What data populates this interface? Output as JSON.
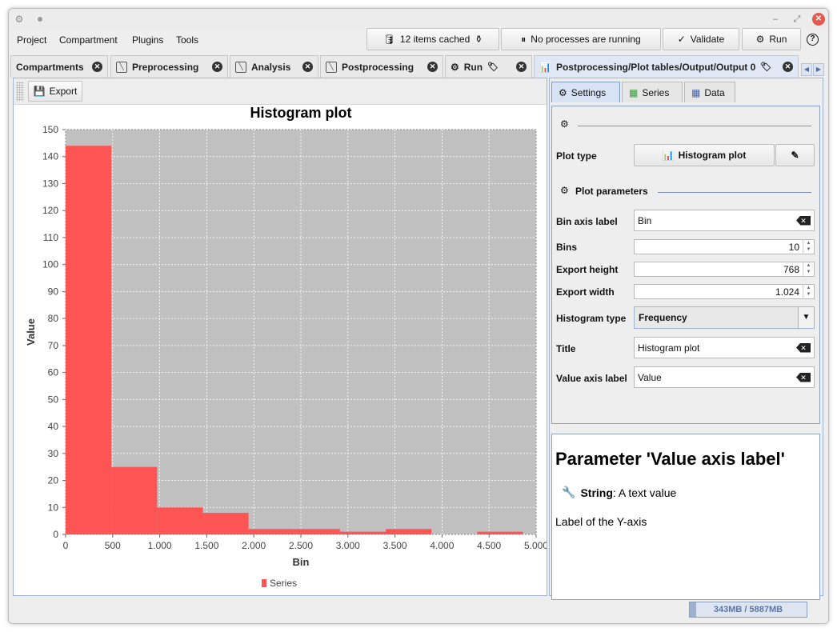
{
  "menu": {
    "items": [
      "Project",
      "Compartment",
      "Plugins",
      "Tools"
    ]
  },
  "toolbar": {
    "cache_label": "12 items cached",
    "processes_label": "No processes are running",
    "validate_label": "Validate",
    "run_label": "Run",
    "help_label": "?"
  },
  "tabs": [
    {
      "label": "Compartments"
    },
    {
      "label": "Preprocessing"
    },
    {
      "label": "Analysis"
    },
    {
      "label": "Postprocessing"
    },
    {
      "label": "Run"
    },
    {
      "label": "Postprocessing/Plot tables/Output/Output 0"
    }
  ],
  "left": {
    "export_label": "Export"
  },
  "chart_data": {
    "type": "bar",
    "title": "Histogram plot",
    "xlabel": "Bin",
    "ylabel": "Value",
    "xlim": [
      0,
      5000
    ],
    "ylim": [
      0,
      150
    ],
    "x_ticks": [
      "0",
      "500",
      "1.000",
      "1.500",
      "2.000",
      "2.500",
      "3.000",
      "3.500",
      "4.000",
      "4.500",
      "5.000"
    ],
    "y_ticks": [
      "0",
      "10",
      "20",
      "30",
      "40",
      "50",
      "60",
      "70",
      "80",
      "90",
      "100",
      "110",
      "120",
      "130",
      "140",
      "150"
    ],
    "bins": [
      {
        "start": 0,
        "end": 486,
        "value": 144
      },
      {
        "start": 486,
        "end": 972,
        "value": 25
      },
      {
        "start": 972,
        "end": 1458,
        "value": 10
      },
      {
        "start": 1458,
        "end": 1944,
        "value": 8
      },
      {
        "start": 1944,
        "end": 2430,
        "value": 2
      },
      {
        "start": 2430,
        "end": 2916,
        "value": 2
      },
      {
        "start": 2916,
        "end": 3402,
        "value": 1
      },
      {
        "start": 3402,
        "end": 3888,
        "value": 2
      },
      {
        "start": 3888,
        "end": 4374,
        "value": 0
      },
      {
        "start": 4374,
        "end": 4860,
        "value": 1
      }
    ],
    "series": [
      {
        "name": "Series",
        "color": "#fd5454"
      }
    ],
    "plot_background": "#c0c0c0",
    "grid": true,
    "legend": "bottom"
  },
  "right": {
    "tabs": [
      "Settings",
      "Series",
      "Data"
    ],
    "plot_type_label": "Plot type",
    "plot_type_value": "Histogram plot",
    "plot_params_label": "Plot parameters",
    "params": {
      "bin_axis_label": {
        "label": "Bin axis label",
        "value": "Bin"
      },
      "bins": {
        "label": "Bins",
        "value": "10"
      },
      "export_height": {
        "label": "Export height",
        "value": "768"
      },
      "export_width": {
        "label": "Export width",
        "value": "1.024"
      },
      "histogram_type": {
        "label": "Histogram type",
        "value": "Frequency"
      },
      "title": {
        "label": "Title",
        "value": "Histogram plot"
      },
      "value_axis_label": {
        "label": "Value axis label",
        "value": "Value"
      }
    },
    "help": {
      "title": "Parameter 'Value axis label'",
      "type_name": "String",
      "type_desc": ": A text value",
      "description": "Label of the Y-axis"
    }
  },
  "status": {
    "memory": "343MB / 5887MB",
    "memory_fraction": 0.058
  }
}
